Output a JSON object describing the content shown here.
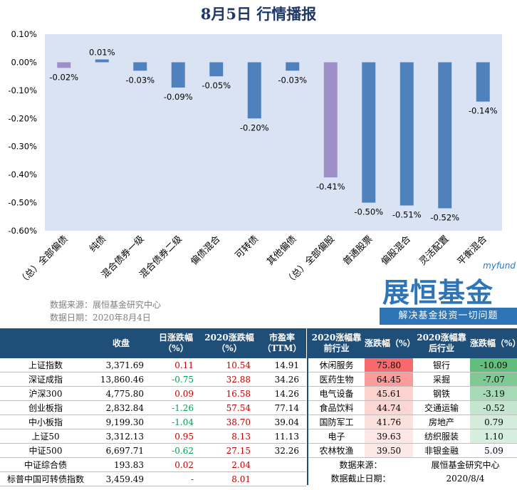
{
  "title": "8月5日 行情播报",
  "chart_data": {
    "type": "bar",
    "categories": [
      "（总）全部偏债",
      "纯债",
      "混合债券一级",
      "混合债券二级",
      "偏债混合",
      "可转债",
      "其他偏债",
      "（总）全部偏股",
      "普通股票",
      "偏股混合",
      "灵活配置",
      "平衡混合"
    ],
    "values": [
      -0.02,
      0.01,
      -0.03,
      -0.09,
      -0.05,
      -0.2,
      -0.03,
      -0.41,
      -0.5,
      -0.51,
      -0.52,
      -0.14
    ],
    "data_labels": [
      "-0.02%",
      "0.01%",
      "-0.03%",
      "-0.09%",
      "-0.05%",
      "-0.20%",
      "-0.03%",
      "-0.41%",
      "-0.50%",
      "-0.51%",
      "-0.52%",
      "-0.14%"
    ],
    "highlight": [
      true,
      false,
      false,
      false,
      false,
      false,
      false,
      true,
      false,
      false,
      false,
      false
    ],
    "yticks": [
      "0.10%",
      "0.00%",
      "-0.10%",
      "-0.20%",
      "-0.30%",
      "-0.40%",
      "-0.50%",
      "-0.60%"
    ],
    "ytick_values": [
      0.1,
      0.0,
      -0.1,
      -0.2,
      -0.3,
      -0.4,
      -0.5,
      -0.6
    ],
    "ylim": [
      -0.6,
      0.1
    ],
    "colors": {
      "bar": "#4f81bd",
      "highlight": "#9e8fc9",
      "plot_bg": "#dae3f3"
    }
  },
  "source": {
    "line1": "数据来源：展恒基金研究中心",
    "line2": "数据日期：2020年8月4日"
  },
  "logo": {
    "myfund": "myfund",
    "brand": "展恒基金",
    "slogan": "解决基金投资一切问题"
  },
  "left_table": {
    "headers": [
      "",
      "收盘",
      "日涨跌幅（%）",
      "2020涨跌幅（%）",
      "市盈率（TTM）"
    ],
    "rows": [
      {
        "name": "上证指数",
        "close": "3,371.69",
        "day": "0.11",
        "ytd": "10.54",
        "pe": "14.91",
        "day_dir": "up",
        "ytd_dir": "up"
      },
      {
        "name": "深证成指",
        "close": "13,860.46",
        "day": "-0.75",
        "ytd": "32.88",
        "pe": "34.26",
        "day_dir": "down",
        "ytd_dir": "up"
      },
      {
        "name": "沪深300",
        "close": "4,775.80",
        "day": "0.09",
        "ytd": "16.58",
        "pe": "14.26",
        "day_dir": "up",
        "ytd_dir": "up"
      },
      {
        "name": "创业板指",
        "close": "2,832.84",
        "day": "-1.26",
        "ytd": "57.54",
        "pe": "77.14",
        "day_dir": "down",
        "ytd_dir": "up"
      },
      {
        "name": "中小板指",
        "close": "9,199.30",
        "day": "-1.04",
        "ytd": "38.70",
        "pe": "39.04",
        "day_dir": "down",
        "ytd_dir": "up"
      },
      {
        "name": "上证50",
        "close": "3,312.13",
        "day": "0.95",
        "ytd": "8.13",
        "pe": "11.13",
        "day_dir": "up",
        "ytd_dir": "up"
      },
      {
        "name": "中证500",
        "close": "6,697.71",
        "day": "-0.62",
        "ytd": "27.15",
        "pe": "32.26",
        "day_dir": "down",
        "ytd_dir": "up"
      },
      {
        "name": "中证综合债",
        "close": "193.83",
        "day": "0.02",
        "ytd": "2.04",
        "pe": "",
        "day_dir": "up",
        "ytd_dir": "up"
      },
      {
        "name": "标普中国可转债指数",
        "close": "3,459.49",
        "day": "-",
        "ytd": "8.01",
        "pe": "",
        "day_dir": "up",
        "ytd_dir": "up"
      }
    ]
  },
  "right_table": {
    "headers": [
      "2020涨幅靠前行业",
      "涨跌幅（%）",
      "2020涨幅靠后行业",
      "涨跌幅（%）"
    ],
    "rows": [
      {
        "top": "休闲服务",
        "top_val": "75.80",
        "bottom": "银行",
        "bottom_val": "-10.09",
        "top_bg": "#f8696b",
        "bottom_bg": "#63be7b"
      },
      {
        "top": "医药生物",
        "top_val": "64.45",
        "bottom": "采掘",
        "bottom_val": "-7.07",
        "top_bg": "#fa9d9a",
        "bottom_bg": "#80c995"
      },
      {
        "top": "电气设备",
        "top_val": "45.61",
        "bottom": "钢铁",
        "bottom_val": "-3.19",
        "top_bg": "#fcd3cf",
        "bottom_bg": "#a6d9b6"
      },
      {
        "top": "食品饮料",
        "top_val": "44.74",
        "bottom": "交通运输",
        "bottom_val": "-0.52",
        "top_bg": "#fcd6d2",
        "bottom_bg": "#c4e6cf"
      },
      {
        "top": "国防军工",
        "top_val": "41.76",
        "bottom": "房地产",
        "bottom_val": "0.79",
        "top_bg": "#fce0dc",
        "bottom_bg": "#d3ecdb"
      },
      {
        "top": "电子",
        "top_val": "39.63",
        "bottom": "纺织服装",
        "bottom_val": "1.10",
        "top_bg": "#fce7e4",
        "bottom_bg": "#d6eedd"
      },
      {
        "top": "农林牧渔",
        "top_val": "39.50",
        "bottom": "非银金融",
        "bottom_val": "5.09",
        "top_bg": "#fce8e5",
        "bottom_bg": "#fcfcff"
      }
    ],
    "footer": [
      {
        "label": "数据来源：",
        "value": "展恒基金研究中心"
      },
      {
        "label": "数据截止日期：",
        "value": "2020/8/4"
      }
    ]
  }
}
